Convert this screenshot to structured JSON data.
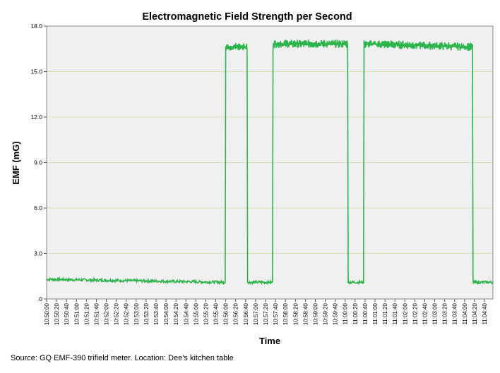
{
  "chart_data": {
    "type": "line",
    "title": "Electromagnetic Field Strength per Second",
    "xlabel": "Time",
    "ylabel": "EMF (mG)",
    "ylim": [
      0,
      18
    ],
    "yticks": [
      ".0",
      "3.0",
      "6.0",
      "9.0",
      "12.0",
      "15.0",
      "18.0"
    ],
    "ytick_values": [
      0,
      3,
      6,
      9,
      12,
      15,
      18
    ],
    "xticks": [
      "10:50:00",
      "10:50:20",
      "10:50:40",
      "10:51:00",
      "10:51:20",
      "10:51:40",
      "10:52:00",
      "10:52:20",
      "10:52:40",
      "10:53:00",
      "10:53:20",
      "10:53:40",
      "10:54:00",
      "10:54:20",
      "10:54:40",
      "10:55:00",
      "10:55:20",
      "10:55:40",
      "10:56:00",
      "10:56:20",
      "10:56:40",
      "10:57:00",
      "10:57:20",
      "10:57:40",
      "10:58:00",
      "10:58:20",
      "10:58:40",
      "10:59:00",
      "10:59:20",
      "10:59:40",
      "11:00:00",
      "11:00:20",
      "11:00:40",
      "11:01:00",
      "11:01:20",
      "11:01:40",
      "11:02:00",
      "11:02:20",
      "11:02:40",
      "11:03:00",
      "11:03:20",
      "11:03:40",
      "11:04:00",
      "11:04:20",
      "11:04:40"
    ],
    "xlim": [
      "10:50:00",
      "11:04:57"
    ],
    "grid": true,
    "line_color": "#2db44a",
    "plot_background": "#f0f0f0",
    "grid_color": "#dce3b4",
    "segments": [
      {
        "start": "10:50:00",
        "end": "10:55:59",
        "level_start": 1.3,
        "level_end": 1.1
      },
      {
        "start": "10:56:00",
        "end": "10:56:43",
        "level_start": 16.6,
        "level_end": 16.6
      },
      {
        "start": "10:56:44",
        "end": "10:57:34",
        "level_start": 1.1,
        "level_end": 1.1
      },
      {
        "start": "10:57:35",
        "end": "11:00:05",
        "level_start": 16.8,
        "level_end": 16.8
      },
      {
        "start": "11:00:06",
        "end": "11:00:37",
        "level_start": 1.1,
        "level_end": 1.1
      },
      {
        "start": "11:00:38",
        "end": "11:04:16",
        "level_start": 16.8,
        "level_end": 16.6
      },
      {
        "start": "11:04:17",
        "end": "11:04:57",
        "level_start": 1.1,
        "level_end": 1.1
      }
    ]
  },
  "source_text": "Source: GQ EMF-390 trifield meter. Location: Dee's kitchen table"
}
